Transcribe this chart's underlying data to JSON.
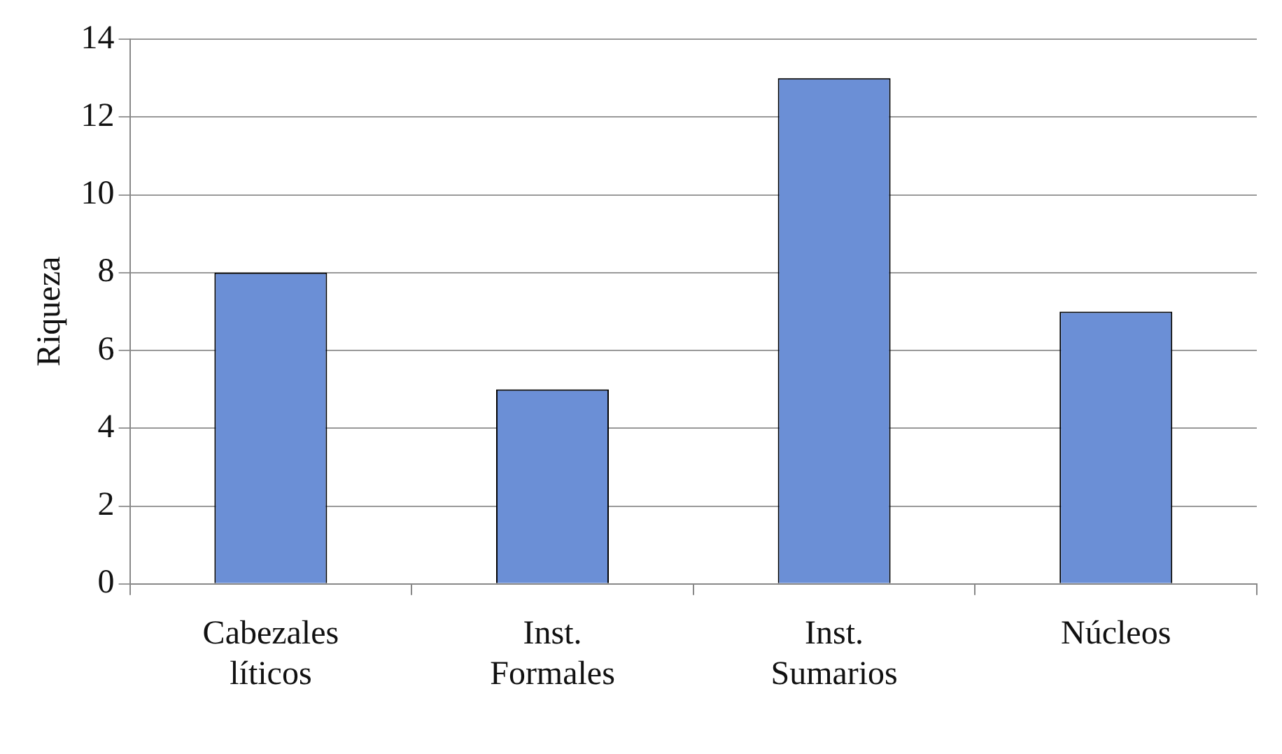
{
  "chart_data": {
    "type": "bar",
    "ylabel": "Riqueza",
    "categories": [
      "Cabezales líticos",
      "Inst. Formales",
      "Inst. Sumarios",
      "Núcleos"
    ],
    "values": [
      8,
      5,
      13,
      7
    ],
    "color": "#6b8fd6",
    "ylim": [
      0,
      14
    ],
    "yticks": [
      0,
      2,
      4,
      6,
      8,
      10,
      12,
      14
    ],
    "grid": "y",
    "legend": false
  }
}
